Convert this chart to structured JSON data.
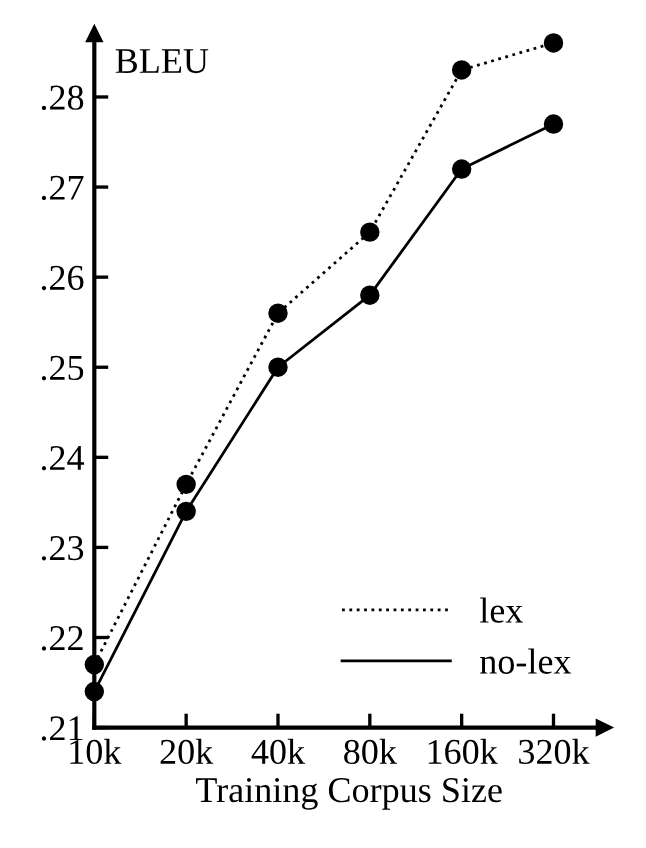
{
  "chart_data": {
    "type": "line",
    "ylabel": "BLEU",
    "xlabel": "Training Corpus Size",
    "categories": [
      "10k",
      "20k",
      "40k",
      "80k",
      "160k",
      "320k"
    ],
    "series": [
      {
        "name": "lex",
        "color": "#000000",
        "line_style": "dotted",
        "values": [
          0.217,
          0.237,
          0.256,
          0.265,
          0.283,
          0.286
        ]
      },
      {
        "name": "no-lex",
        "color": "#000000",
        "line_style": "solid",
        "values": [
          0.214,
          0.234,
          0.25,
          0.258,
          0.272,
          0.277
        ]
      }
    ],
    "marker": "circle",
    "ylim": [
      0.21,
      0.287
    ],
    "yticks": [
      {
        "value": 0.21,
        "label": ".21"
      },
      {
        "value": 0.22,
        "label": ".22"
      },
      {
        "value": 0.23,
        "label": ".23"
      },
      {
        "value": 0.24,
        "label": ".24"
      },
      {
        "value": 0.25,
        "label": ".25"
      },
      {
        "value": 0.26,
        "label": ".26"
      },
      {
        "value": 0.27,
        "label": ".27"
      },
      {
        "value": 0.28,
        "label": ".28"
      }
    ],
    "legend": "bottom right",
    "grid": false
  }
}
